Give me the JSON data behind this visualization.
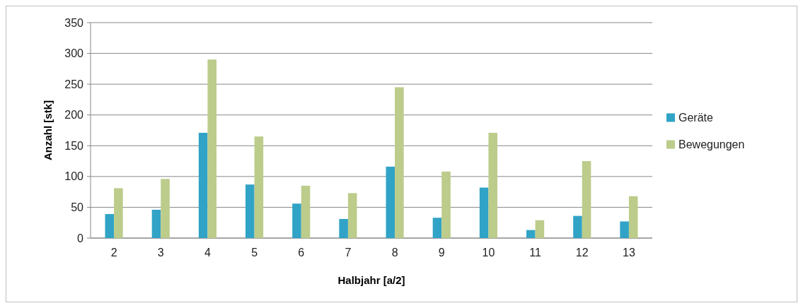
{
  "chart_data": {
    "type": "bar",
    "xlabel": "Halbjahr [a/2]",
    "ylabel": "Anzahl [stk]",
    "categories": [
      "2",
      "3",
      "4",
      "5",
      "6",
      "7",
      "8",
      "9",
      "10",
      "11",
      "12",
      "13"
    ],
    "series": [
      {
        "name": "Geräte",
        "color": "#31a3c7",
        "values": [
          39,
          46,
          171,
          87,
          56,
          31,
          116,
          33,
          82,
          13,
          36,
          27
        ]
      },
      {
        "name": "Bewegungen",
        "color": "#bccc8a",
        "values": [
          81,
          96,
          290,
          165,
          85,
          73,
          245,
          108,
          171,
          29,
          125,
          68
        ]
      }
    ],
    "ylim": [
      0,
      350
    ],
    "yticks": [
      0,
      50,
      100,
      150,
      200,
      250,
      300,
      350
    ],
    "grid": "y",
    "legend": "right"
  }
}
